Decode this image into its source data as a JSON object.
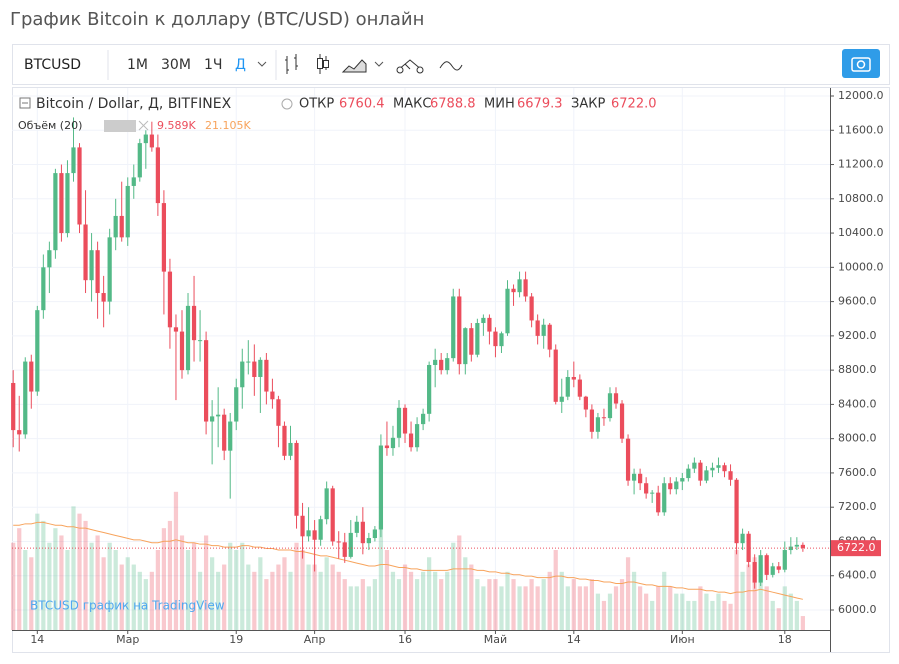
{
  "page_title": "График Bitcoin к доллару (BTC/USD) онлайн",
  "toolbar": {
    "symbol": "BTCUSD",
    "intervals": [
      "1М",
      "30М",
      "1Ч",
      "Д"
    ]
  },
  "chart_data": {
    "type": "candlestick",
    "legend": {
      "name": "Bitcoin / Dollar, Д, BITFINEX",
      "labels": [
        "ОТКР",
        "МАКС",
        "МИН",
        "ЗАКР"
      ],
      "open": 6760.4,
      "high": 6788.8,
      "low": 6679.3
    },
    "volume_legend": {
      "name": "Объём (20)",
      "value": {
        "value": 9589,
        "label": "9.589K"
      },
      "ma": {
        "value": 21105,
        "label": "21.105K"
      }
    },
    "last_price": {
      "value": 6722,
      "label": "6722.0"
    },
    "watermark": "BTCUSD график на TradingView",
    "up_color": "#53b987",
    "down_color": "#eb4d5c",
    "ma_color": "#f7a35c",
    "grid": true,
    "ylim": [
      5800,
      12120
    ],
    "yticks": [
      {
        "value": 6000,
        "label": "6000.0"
      },
      {
        "value": 6400,
        "label": "6400.0"
      },
      {
        "value": 6800,
        "label": "6800.0"
      },
      {
        "value": 7200,
        "label": "7200.0"
      },
      {
        "value": 7600,
        "label": "7600.0"
      },
      {
        "value": 8000,
        "label": "8000.0"
      },
      {
        "value": 8400,
        "label": "8400.0"
      },
      {
        "value": 8800,
        "label": "8800.0"
      },
      {
        "value": 9200,
        "label": "9200.0"
      },
      {
        "value": 9600,
        "label": "9600.0"
      },
      {
        "value": 10000,
        "label": "10000.0"
      },
      {
        "value": 10400,
        "label": "10400.0"
      },
      {
        "value": 10800,
        "label": "10800.0"
      },
      {
        "value": 11200,
        "label": "11200.0"
      },
      {
        "value": 11600,
        "label": "11600.0"
      },
      {
        "value": 12000,
        "label": "12000.0"
      }
    ],
    "xlim": [
      -0.2,
      135.5
    ],
    "xticks": [
      {
        "value": 4,
        "label": "14"
      },
      {
        "value": 19,
        "label": "Мар"
      },
      {
        "value": 37,
        "label": "19"
      },
      {
        "value": 50,
        "label": "Апр"
      },
      {
        "value": 65,
        "label": "16"
      },
      {
        "value": 80,
        "label": "Май"
      },
      {
        "value": 93,
        "label": "14"
      },
      {
        "value": 111,
        "label": "Июн"
      },
      {
        "value": 128,
        "label": "18"
      }
    ],
    "volume_lim": [
      0,
      110000
    ],
    "ohlc": [
      [
        8650,
        8800,
        7900,
        8100
      ],
      [
        8100,
        8500,
        7850,
        8050
      ],
      [
        8050,
        8950,
        8000,
        8900
      ],
      [
        8900,
        8980,
        8350,
        8550
      ],
      [
        8550,
        9550,
        8500,
        9500
      ],
      [
        9500,
        10150,
        9400,
        10000
      ],
      [
        10000,
        10300,
        9700,
        10200
      ],
      [
        10200,
        11150,
        10100,
        11100
      ],
      [
        11100,
        11200,
        10300,
        10400
      ],
      [
        10400,
        11250,
        10350,
        11100
      ],
      [
        11100,
        11750,
        11000,
        11400
      ],
      [
        11400,
        11450,
        10400,
        10500
      ],
      [
        10500,
        10900,
        9700,
        9850
      ],
      [
        9850,
        10400,
        9600,
        10200
      ],
      [
        10200,
        10300,
        9400,
        9700
      ],
      [
        9700,
        9900,
        9300,
        9600
      ],
      [
        9600,
        10450,
        9450,
        10350
      ],
      [
        10350,
        10800,
        10200,
        10600
      ],
      [
        10600,
        11000,
        10300,
        10350
      ],
      [
        10350,
        11050,
        10250,
        10950
      ],
      [
        10950,
        11200,
        10800,
        11050
      ],
      [
        11050,
        11500,
        11000,
        11450
      ],
      [
        11450,
        11600,
        11150,
        11550
      ],
      [
        11550,
        11700,
        11350,
        11400
      ],
      [
        11400,
        11550,
        10600,
        10750
      ],
      [
        10750,
        10900,
        9450,
        9950
      ],
      [
        9950,
        10100,
        9050,
        9300
      ],
      [
        9300,
        9450,
        8450,
        9250
      ],
      [
        9250,
        9500,
        8700,
        8800
      ],
      [
        8800,
        9700,
        8750,
        9550
      ],
      [
        9550,
        9900,
        8900,
        9150
      ],
      [
        9150,
        9500,
        8900,
        9150
      ],
      [
        9150,
        9250,
        8050,
        8200
      ],
      [
        8200,
        8450,
        7700,
        8260
      ],
      [
        8260,
        8600,
        7900,
        8280
      ],
      [
        8280,
        8350,
        7750,
        7860
      ],
      [
        7860,
        8300,
        7300,
        8200
      ],
      [
        8200,
        8700,
        8100,
        8600
      ],
      [
        8600,
        9050,
        8350,
        8900
      ],
      [
        8900,
        9150,
        8750,
        8900
      ],
      [
        8900,
        9100,
        8500,
        8720
      ],
      [
        8720,
        8950,
        8300,
        8920
      ],
      [
        8920,
        9000,
        8400,
        8550
      ],
      [
        8550,
        8700,
        8350,
        8460
      ],
      [
        8460,
        8500,
        7900,
        8150
      ],
      [
        8150,
        8200,
        7750,
        7800
      ],
      [
        7800,
        8150,
        7750,
        7950
      ],
      [
        7950,
        7980,
        6950,
        7100
      ],
      [
        7100,
        7250,
        6600,
        6860
      ],
      [
        6860,
        7200,
        6800,
        6930
      ],
      [
        6930,
        7050,
        6450,
        6820
      ],
      [
        6820,
        7100,
        6750,
        7060
      ],
      [
        7060,
        7500,
        7000,
        7420
      ],
      [
        7420,
        7450,
        6750,
        6800
      ],
      [
        6800,
        6920,
        6600,
        6790
      ],
      [
        6790,
        6900,
        6550,
        6620
      ],
      [
        6620,
        7050,
        6600,
        6900
      ],
      [
        6900,
        7100,
        6850,
        7030
      ],
      [
        7030,
        7200,
        6650,
        6780
      ],
      [
        6780,
        6900,
        6700,
        6840
      ],
      [
        6840,
        6980,
        6800,
        6940
      ],
      [
        6940,
        8050,
        6850,
        7920
      ],
      [
        7920,
        8200,
        7800,
        7890
      ],
      [
        7890,
        8150,
        7800,
        8010
      ],
      [
        8010,
        8450,
        7900,
        8360
      ],
      [
        8360,
        8400,
        7950,
        8060
      ],
      [
        8060,
        8200,
        7850,
        7900
      ],
      [
        7900,
        8250,
        7850,
        8170
      ],
      [
        8170,
        8350,
        8100,
        8290
      ],
      [
        8290,
        8900,
        8200,
        8860
      ],
      [
        8860,
        9050,
        8600,
        8920
      ],
      [
        8920,
        9000,
        8750,
        8800
      ],
      [
        8800,
        9000,
        8750,
        8940
      ],
      [
        8940,
        9750,
        8900,
        9660
      ],
      [
        9660,
        9750,
        8750,
        8870
      ],
      [
        8870,
        9300,
        8750,
        9290
      ],
      [
        9290,
        9350,
        8900,
        8980
      ],
      [
        8980,
        9400,
        8950,
        9350
      ],
      [
        9350,
        9450,
        9200,
        9410
      ],
      [
        9410,
        9450,
        9100,
        9250
      ],
      [
        9250,
        9300,
        8950,
        9080
      ],
      [
        9080,
        9250,
        9000,
        9230
      ],
      [
        9230,
        9850,
        9200,
        9750
      ],
      [
        9750,
        9800,
        9550,
        9710
      ],
      [
        9710,
        9950,
        9650,
        9860
      ],
      [
        9860,
        9950,
        9600,
        9660
      ],
      [
        9660,
        9700,
        9300,
        9380
      ],
      [
        9380,
        9450,
        9100,
        9200
      ],
      [
        9200,
        9400,
        9050,
        9330
      ],
      [
        9330,
        9350,
        8950,
        9040
      ],
      [
        9040,
        9100,
        8400,
        8430
      ],
      [
        8430,
        8700,
        8300,
        8490
      ],
      [
        8490,
        8800,
        8450,
        8720
      ],
      [
        8720,
        8900,
        8600,
        8690
      ],
      [
        8690,
        8750,
        8450,
        8490
      ],
      [
        8490,
        8500,
        8250,
        8340
      ],
      [
        8340,
        8400,
        8000,
        8080
      ],
      [
        8080,
        8300,
        8000,
        8250
      ],
      [
        8250,
        8350,
        8150,
        8240
      ],
      [
        8240,
        8600,
        8200,
        8530
      ],
      [
        8530,
        8600,
        8350,
        8410
      ],
      [
        8410,
        8450,
        7950,
        8000
      ],
      [
        8000,
        8050,
        7450,
        7510
      ],
      [
        7510,
        7650,
        7350,
        7590
      ],
      [
        7590,
        7650,
        7400,
        7480
      ],
      [
        7480,
        7550,
        7300,
        7360
      ],
      [
        7360,
        7400,
        7250,
        7370
      ],
      [
        7370,
        7450,
        7100,
        7140
      ],
      [
        7140,
        7550,
        7100,
        7480
      ],
      [
        7480,
        7550,
        7350,
        7410
      ],
      [
        7410,
        7550,
        7350,
        7500
      ],
      [
        7500,
        7600,
        7400,
        7540
      ],
      [
        7540,
        7700,
        7500,
        7650
      ],
      [
        7650,
        7780,
        7600,
        7720
      ],
      [
        7720,
        7750,
        7450,
        7510
      ],
      [
        7510,
        7680,
        7480,
        7630
      ],
      [
        7630,
        7720,
        7550,
        7660
      ],
      [
        7660,
        7780,
        7600,
        7690
      ],
      [
        7690,
        7720,
        7550,
        7620
      ],
      [
        7620,
        7700,
        7450,
        7520
      ],
      [
        7520,
        7540,
        6650,
        6780
      ],
      [
        6780,
        6950,
        6700,
        6890
      ],
      [
        6890,
        6920,
        6500,
        6560
      ],
      [
        6560,
        6650,
        6250,
        6320
      ],
      [
        6320,
        6700,
        6280,
        6640
      ],
      [
        6640,
        6660,
        6350,
        6410
      ],
      [
        6410,
        6550,
        6380,
        6510
      ],
      [
        6510,
        6560,
        6430,
        6470
      ],
      [
        6470,
        6800,
        6440,
        6700
      ],
      [
        6700,
        6850,
        6650,
        6740
      ],
      [
        6740,
        6850,
        6700,
        6760.4
      ],
      [
        6760.4,
        6788.8,
        6679.3,
        6722.0
      ]
    ],
    "volume": [
      60000,
      70000,
      55000,
      50000,
      80000,
      75000,
      60000,
      70000,
      65000,
      55000,
      85000,
      80000,
      75000,
      60000,
      65000,
      50000,
      60000,
      55000,
      45000,
      50000,
      45000,
      40000,
      35000,
      40000,
      55000,
      70000,
      75000,
      95000,
      65000,
      55000,
      60000,
      40000,
      65000,
      50000,
      40000,
      45000,
      60000,
      55000,
      60000,
      45000,
      40000,
      50000,
      35000,
      40000,
      45000,
      50000,
      40000,
      60000,
      55000,
      45000,
      45000,
      40000,
      50000,
      45000,
      40000,
      35000,
      30000,
      30000,
      35000,
      30000,
      35000,
      75000,
      55000,
      40000,
      35000,
      45000,
      40000,
      35000,
      40000,
      50000,
      40000,
      35000,
      40000,
      60000,
      65000,
      50000,
      45000,
      35000,
      30000,
      35000,
      35000,
      30000,
      40000,
      35000,
      30000,
      30000,
      35000,
      30000,
      35000,
      40000,
      55000,
      40000,
      30000,
      35000,
      30000,
      30000,
      35000,
      25000,
      20000,
      25000,
      30000,
      35000,
      50000,
      40000,
      30000,
      25000,
      20000,
      30000,
      40000,
      30000,
      25000,
      25000,
      20000,
      20000,
      30000,
      25000,
      20000,
      25000,
      20000,
      18000,
      55000,
      40000,
      45000,
      50000,
      45000,
      30000,
      20000,
      15000,
      30000,
      25000,
      20000,
      9589
    ],
    "volume_ma": [
      72000,
      72000,
      73000,
      73000,
      74000,
      74000,
      73000,
      72000,
      72000,
      71000,
      71000,
      70000,
      70000,
      69000,
      68000,
      67000,
      66000,
      65000,
      64000,
      63000,
      62000,
      62000,
      61000,
      60000,
      60000,
      61000,
      61000,
      62000,
      61000,
      60000,
      60000,
      59000,
      59000,
      58000,
      58000,
      57000,
      57000,
      57000,
      58000,
      58000,
      57000,
      57000,
      56000,
      56000,
      55000,
      55000,
      55000,
      54000,
      54000,
      53000,
      52000,
      51000,
      51000,
      50000,
      49000,
      48000,
      47000,
      46000,
      45000,
      44000,
      44000,
      45000,
      45000,
      44000,
      43000,
      43000,
      42000,
      42000,
      41000,
      41000,
      41000,
      41000,
      41000,
      42000,
      42000,
      42000,
      42000,
      41000,
      41000,
      40000,
      40000,
      39000,
      39000,
      38000,
      38000,
      37000,
      37000,
      36000,
      36000,
      36000,
      37000,
      37000,
      36000,
      36000,
      35000,
      35000,
      34000,
      34000,
      33000,
      33000,
      32000,
      32000,
      33000,
      33000,
      32000,
      31000,
      31000,
      30000,
      30000,
      30000,
      29000,
      29000,
      28000,
      28000,
      28000,
      27000,
      27000,
      26000,
      26000,
      25000,
      26000,
      26000,
      27000,
      27000,
      28000,
      27000,
      26000,
      25000,
      24000,
      23000,
      22000,
      21105
    ]
  }
}
